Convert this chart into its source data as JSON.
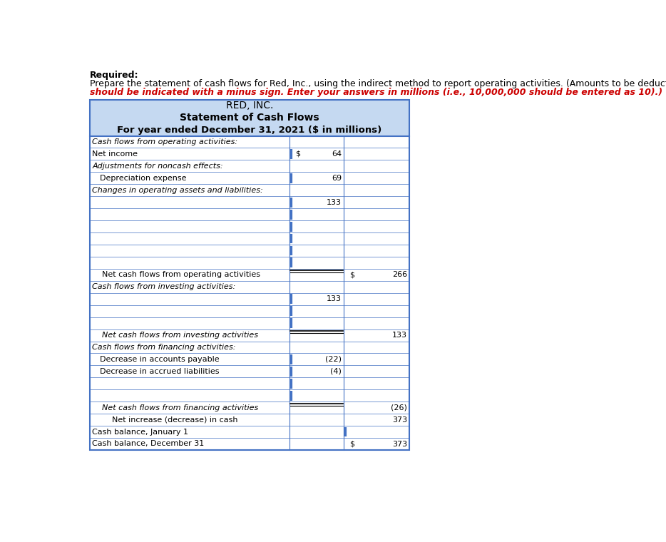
{
  "title_line1": "RED, INC.",
  "title_line2": "Statement of Cash Flows",
  "title_line3": "For year ended December 31, 2021 ($ in millions)",
  "header_bg": "#c5d9f1",
  "border_color": "#4472c4",
  "required_text": "Required:",
  "instruction_line1": "Prepare the statement of cash flows for Red, Inc., using the indirect method to report operating activities. (Amounts to be deducted",
  "instruction_line2": "should be indicated with a minus sign. Enter your answers in millions (i.e., 10,000,000 should be entered as 10).)",
  "rows": [
    {
      "label": "Cash flows from operating activities:",
      "indent": 0,
      "col2": "",
      "col2_prefix": "",
      "col3": "",
      "col3_prefix": "",
      "style": "italic",
      "blue_bar": false,
      "col3_bar": false,
      "double_line": false
    },
    {
      "label": "Net income",
      "indent": 0,
      "col2": "64",
      "col2_prefix": "$",
      "col3": "",
      "col3_prefix": "",
      "style": "normal",
      "blue_bar": true,
      "col3_bar": false,
      "double_line": false
    },
    {
      "label": "Adjustments for noncash effects:",
      "indent": 0,
      "col2": "",
      "col2_prefix": "",
      "col3": "",
      "col3_prefix": "",
      "style": "italic",
      "blue_bar": false,
      "col3_bar": false,
      "double_line": false
    },
    {
      "label": "Depreciation expense",
      "indent": 1,
      "col2": "69",
      "col2_prefix": "",
      "col3": "",
      "col3_prefix": "",
      "style": "normal",
      "blue_bar": true,
      "col3_bar": false,
      "double_line": false
    },
    {
      "label": "Changes in operating assets and liabilities:",
      "indent": 0,
      "col2": "",
      "col2_prefix": "",
      "col3": "",
      "col3_prefix": "",
      "style": "italic",
      "blue_bar": false,
      "col3_bar": false,
      "double_line": false
    },
    {
      "label": "",
      "indent": 1,
      "col2": "133",
      "col2_prefix": "",
      "col3": "",
      "col3_prefix": "",
      "style": "normal",
      "blue_bar": true,
      "col3_bar": false,
      "double_line": false
    },
    {
      "label": "",
      "indent": 1,
      "col2": "",
      "col2_prefix": "",
      "col3": "",
      "col3_prefix": "",
      "style": "normal",
      "blue_bar": true,
      "col3_bar": false,
      "double_line": false
    },
    {
      "label": "",
      "indent": 1,
      "col2": "",
      "col2_prefix": "",
      "col3": "",
      "col3_prefix": "",
      "style": "normal",
      "blue_bar": true,
      "col3_bar": false,
      "double_line": false
    },
    {
      "label": "",
      "indent": 1,
      "col2": "",
      "col2_prefix": "",
      "col3": "",
      "col3_prefix": "",
      "style": "normal",
      "blue_bar": true,
      "col3_bar": false,
      "double_line": false
    },
    {
      "label": "",
      "indent": 1,
      "col2": "",
      "col2_prefix": "",
      "col3": "",
      "col3_prefix": "",
      "style": "normal",
      "blue_bar": true,
      "col3_bar": false,
      "double_line": false
    },
    {
      "label": "",
      "indent": 1,
      "col2": "",
      "col2_prefix": "",
      "col3": "",
      "col3_prefix": "",
      "style": "normal",
      "blue_bar": true,
      "col3_bar": false,
      "double_line": false
    },
    {
      "label": "    Net cash flows from operating activities",
      "indent": 0,
      "col2": "",
      "col2_prefix": "",
      "col3": "266",
      "col3_prefix": "$",
      "style": "normal",
      "blue_bar": false,
      "col3_bar": false,
      "double_line": true
    },
    {
      "label": "Cash flows from investing activities:",
      "indent": 0,
      "col2": "",
      "col2_prefix": "",
      "col3": "",
      "col3_prefix": "",
      "style": "italic",
      "blue_bar": false,
      "col3_bar": false,
      "double_line": false
    },
    {
      "label": "",
      "indent": 1,
      "col2": "133",
      "col2_prefix": "",
      "col3": "",
      "col3_prefix": "",
      "style": "normal",
      "blue_bar": true,
      "col3_bar": false,
      "double_line": false
    },
    {
      "label": "",
      "indent": 1,
      "col2": "",
      "col2_prefix": "",
      "col3": "",
      "col3_prefix": "",
      "style": "normal",
      "blue_bar": true,
      "col3_bar": false,
      "double_line": false
    },
    {
      "label": "",
      "indent": 1,
      "col2": "",
      "col2_prefix": "",
      "col3": "",
      "col3_prefix": "",
      "style": "normal",
      "blue_bar": true,
      "col3_bar": false,
      "double_line": false
    },
    {
      "label": "    Net cash flows from investing activities",
      "indent": 0,
      "col2": "",
      "col2_prefix": "",
      "col3": "133",
      "col3_prefix": "",
      "style": "italic",
      "blue_bar": false,
      "col3_bar": false,
      "double_line": true
    },
    {
      "label": "Cash flows from financing activities:",
      "indent": 0,
      "col2": "",
      "col2_prefix": "",
      "col3": "",
      "col3_prefix": "",
      "style": "italic",
      "blue_bar": false,
      "col3_bar": false,
      "double_line": false
    },
    {
      "label": "Decrease in accounts payable",
      "indent": 1,
      "col2": "(22)",
      "col2_prefix": "",
      "col3": "",
      "col3_prefix": "",
      "style": "normal",
      "blue_bar": true,
      "col3_bar": false,
      "double_line": false
    },
    {
      "label": "Decrease in accrued liabilities",
      "indent": 1,
      "col2": "(4)",
      "col2_prefix": "",
      "col3": "",
      "col3_prefix": "",
      "style": "normal",
      "blue_bar": true,
      "col3_bar": false,
      "double_line": false
    },
    {
      "label": "",
      "indent": 1,
      "col2": "",
      "col2_prefix": "",
      "col3": "",
      "col3_prefix": "",
      "style": "normal",
      "blue_bar": true,
      "col3_bar": false,
      "double_line": false
    },
    {
      "label": "",
      "indent": 1,
      "col2": "",
      "col2_prefix": "",
      "col3": "",
      "col3_prefix": "",
      "style": "normal",
      "blue_bar": true,
      "col3_bar": false,
      "double_line": false
    },
    {
      "label": "    Net cash flows from financing activities",
      "indent": 0,
      "col2": "",
      "col2_prefix": "",
      "col3": "(26)",
      "col3_prefix": "",
      "style": "italic",
      "blue_bar": false,
      "col3_bar": false,
      "double_line": true
    },
    {
      "label": "        Net increase (decrease) in cash",
      "indent": 0,
      "col2": "",
      "col2_prefix": "",
      "col3": "373",
      "col3_prefix": "",
      "style": "normal",
      "blue_bar": false,
      "col3_bar": false,
      "double_line": false
    },
    {
      "label": "Cash balance, January 1",
      "indent": 0,
      "col2": "",
      "col2_prefix": "",
      "col3": "",
      "col3_prefix": "",
      "style": "normal",
      "blue_bar": false,
      "col3_bar": true,
      "double_line": false
    },
    {
      "label": "Cash balance, December 31",
      "indent": 0,
      "col2": "",
      "col2_prefix": "",
      "col3": "373",
      "col3_prefix": "$",
      "style": "normal",
      "blue_bar": false,
      "col3_bar": false,
      "double_line": false
    }
  ]
}
